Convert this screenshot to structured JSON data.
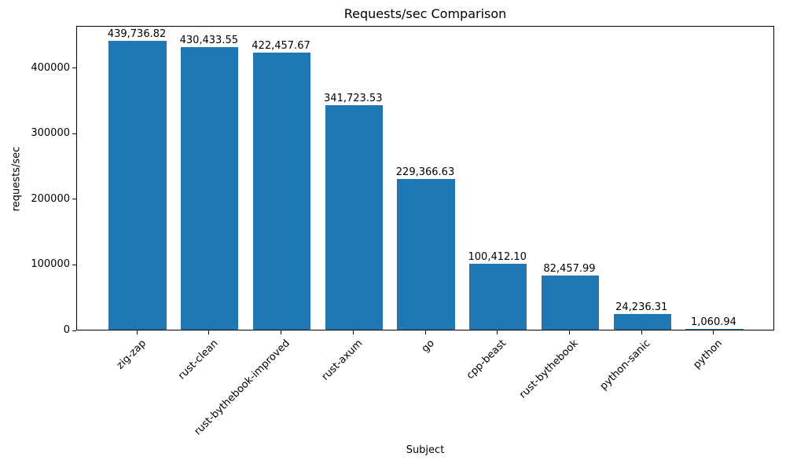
{
  "figure": {
    "background": "#ffffff",
    "text_color": "#000000"
  },
  "chart_data": {
    "type": "bar",
    "title": "Requests/sec Comparison",
    "xlabel": "Subject",
    "ylabel": "requests/sec",
    "categories": [
      "zig-zap",
      "rust-clean",
      "rust-bythebook-improved",
      "rust-axum",
      "go",
      "cpp-beast",
      "rust-bythebook",
      "python-sanic",
      "python"
    ],
    "values": [
      439736.82,
      430433.55,
      422457.67,
      341723.53,
      229366.63,
      100412.1,
      82457.99,
      24236.31,
      1060.94
    ],
    "value_labels": [
      "439,736.82",
      "430,433.55",
      "422,457.67",
      "341,723.53",
      "229,366.63",
      "100,412.10",
      "82,457.99",
      "24,236.31",
      "1,060.94"
    ],
    "yticks": {
      "values": [
        0,
        100000,
        200000,
        300000,
        400000
      ],
      "labels": [
        "0",
        "100000",
        "200000",
        "300000",
        "400000"
      ]
    },
    "ylim": [
      0,
      464000
    ],
    "bar_color": "#1f77b4",
    "grid": false,
    "legend": null,
    "xtick_rotation_deg": 45
  }
}
